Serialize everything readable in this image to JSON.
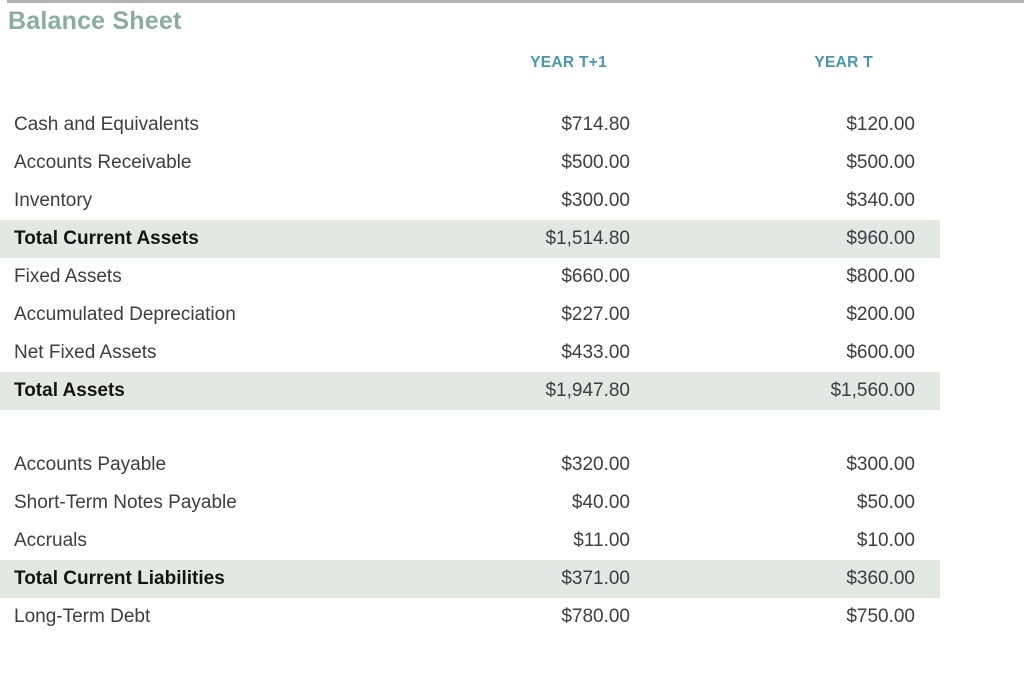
{
  "title": "Balance Sheet",
  "colors": {
    "title_green": "#89ae9d",
    "header_teal": "#4a97ad",
    "total_row_shade": "#e3e8e4",
    "top_rule_gray": "#b3b3b3",
    "body_text": "#3d3d42"
  },
  "table": {
    "columns": [
      "",
      "YEAR T+1",
      "YEAR T"
    ],
    "rows": [
      {
        "label": "Cash and Equivalents",
        "year_t1": "$714.80",
        "year_t": "$120.00",
        "type": "normal"
      },
      {
        "label": "Accounts Receivable",
        "year_t1": "$500.00",
        "year_t": "$500.00",
        "type": "normal"
      },
      {
        "label": "Inventory",
        "year_t1": "$300.00",
        "year_t": "$340.00",
        "type": "normal"
      },
      {
        "label": "Total Current Assets",
        "year_t1": "$1,514.80",
        "year_t": "$960.00",
        "type": "total"
      },
      {
        "label": "Fixed Assets",
        "year_t1": "$660.00",
        "year_t": "$800.00",
        "type": "normal"
      },
      {
        "label": "Accumulated Depreciation",
        "year_t1": "$227.00",
        "year_t": "$200.00",
        "type": "normal"
      },
      {
        "label": "Net Fixed Assets",
        "year_t1": "$433.00",
        "year_t": "$600.00",
        "type": "normal"
      },
      {
        "label": "Total Assets",
        "year_t1": "$1,947.80",
        "year_t": "$1,560.00",
        "type": "total"
      },
      {
        "label": "",
        "year_t1": "",
        "year_t": "",
        "type": "spacer"
      },
      {
        "label": "Accounts Payable",
        "year_t1": "$320.00",
        "year_t": "$300.00",
        "type": "normal"
      },
      {
        "label": "Short-Term Notes Payable",
        "year_t1": "$40.00",
        "year_t": "$50.00",
        "type": "normal"
      },
      {
        "label": "Accruals",
        "year_t1": "$11.00",
        "year_t": "$10.00",
        "type": "normal"
      },
      {
        "label": "Total Current Liabilities",
        "year_t1": "$371.00",
        "year_t": "$360.00",
        "type": "total"
      },
      {
        "label": "Long-Term Debt",
        "year_t1": "$780.00",
        "year_t": "$750.00",
        "type": "normal"
      }
    ]
  }
}
